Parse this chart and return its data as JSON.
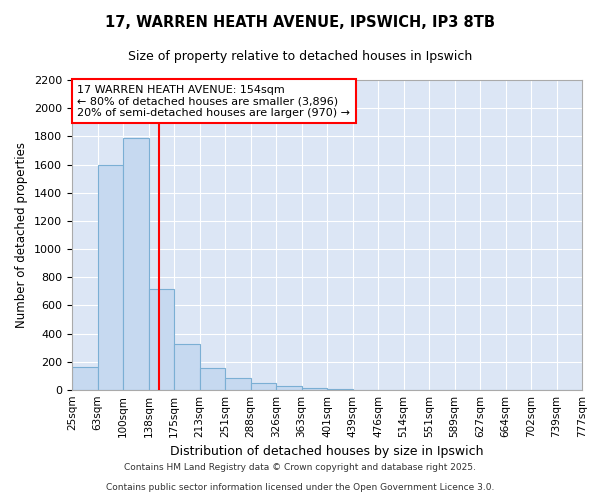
{
  "title1": "17, WARREN HEATH AVENUE, IPSWICH, IP3 8TB",
  "title2": "Size of property relative to detached houses in Ipswich",
  "xlabel": "Distribution of detached houses by size in Ipswich",
  "ylabel": "Number of detached properties",
  "bin_labels": [
    "25sqm",
    "63sqm",
    "100sqm",
    "138sqm",
    "175sqm",
    "213sqm",
    "251sqm",
    "288sqm",
    "326sqm",
    "363sqm",
    "401sqm",
    "439sqm",
    "476sqm",
    "514sqm",
    "551sqm",
    "589sqm",
    "627sqm",
    "664sqm",
    "702sqm",
    "739sqm",
    "777sqm"
  ],
  "bar_values": [
    160,
    1600,
    1790,
    720,
    325,
    155,
    85,
    50,
    25,
    15,
    5,
    3,
    0,
    0,
    0,
    0,
    0,
    0,
    0,
    0
  ],
  "bar_color": "#c6d9f0",
  "bar_edge_color": "#7bafd4",
  "red_line_x": 3.4,
  "annotation_title": "17 WARREN HEATH AVENUE: 154sqm",
  "annotation_line1": "← 80% of detached houses are smaller (3,896)",
  "annotation_line2": "20% of semi-detached houses are larger (970) →",
  "ylim": [
    0,
    2200
  ],
  "yticks": [
    0,
    200,
    400,
    600,
    800,
    1000,
    1200,
    1400,
    1600,
    1800,
    2000,
    2200
  ],
  "figure_bg": "#ffffff",
  "plot_bg_color": "#dce6f5",
  "grid_color": "#ffffff",
  "footer1": "Contains HM Land Registry data © Crown copyright and database right 2025.",
  "footer2": "Contains public sector information licensed under the Open Government Licence 3.0."
}
